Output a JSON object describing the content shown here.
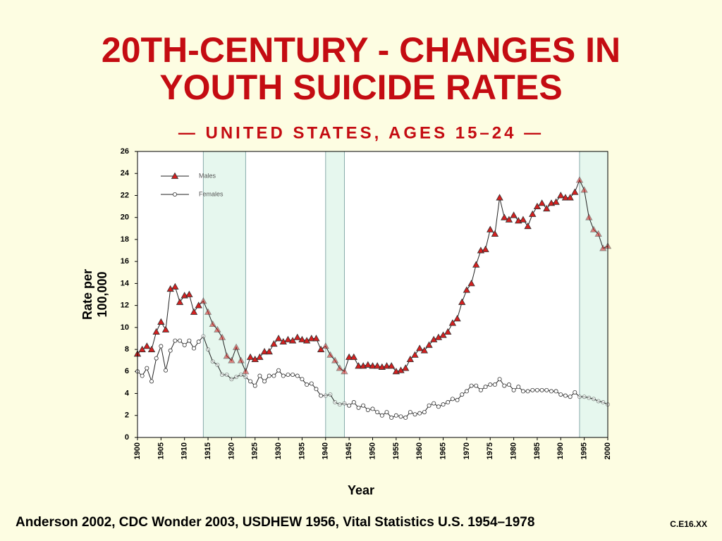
{
  "chart_data": {
    "type": "line",
    "title": [
      "20TH-CENTURY - CHANGES IN",
      "YOUTH SUICIDE RATES"
    ],
    "subtitle": "— UNITED STATES, AGES 15–24 —",
    "x_label": "Year",
    "y_label": [
      "Rate per",
      "100,000"
    ],
    "source": "Anderson 2002, CDC Wonder 2003, USDHEW 1956, Vital Statistics U.S. 1954–1978",
    "code": "C.E16.XX",
    "x": [
      1900,
      1901,
      1902,
      1903,
      1904,
      1905,
      1906,
      1907,
      1908,
      1909,
      1910,
      1911,
      1912,
      1913,
      1914,
      1915,
      1916,
      1917,
      1918,
      1919,
      1920,
      1921,
      1922,
      1923,
      1924,
      1925,
      1926,
      1927,
      1928,
      1929,
      1930,
      1931,
      1932,
      1933,
      1934,
      1935,
      1936,
      1937,
      1938,
      1939,
      1940,
      1941,
      1942,
      1943,
      1944,
      1945,
      1946,
      1947,
      1948,
      1949,
      1950,
      1951,
      1952,
      1953,
      1954,
      1955,
      1956,
      1957,
      1958,
      1959,
      1960,
      1961,
      1962,
      1963,
      1964,
      1965,
      1966,
      1967,
      1968,
      1969,
      1970,
      1971,
      1972,
      1973,
      1974,
      1975,
      1976,
      1977,
      1978,
      1979,
      1980,
      1981,
      1982,
      1983,
      1984,
      1985,
      1986,
      1987,
      1988,
      1989,
      1990,
      1991,
      1992,
      1993,
      1994,
      1995,
      1996,
      1997,
      1998,
      1999,
      2000
    ],
    "series": [
      {
        "name": "Males",
        "color": "#d42020",
        "marker": "triangle",
        "values": [
          7.6,
          8.0,
          8.3,
          8.0,
          9.6,
          10.5,
          9.8,
          13.5,
          13.7,
          12.3,
          12.9,
          13.0,
          11.4,
          12.0,
          12.4,
          11.4,
          10.3,
          9.8,
          9.1,
          7.4,
          7.0,
          8.2,
          7.0,
          6.0,
          7.3,
          7.1,
          7.3,
          7.8,
          7.8,
          8.5,
          9.0,
          8.7,
          8.9,
          8.8,
          9.1,
          8.9,
          8.8,
          9.0,
          9.0,
          8.0,
          8.3,
          7.5,
          7.0,
          6.3,
          6.0,
          7.3,
          7.3,
          6.5,
          6.5,
          6.6,
          6.5,
          6.5,
          6.4,
          6.5,
          6.5,
          6.0,
          6.1,
          6.3,
          7.1,
          7.5,
          8.1,
          7.9,
          8.4,
          8.9,
          9.1,
          9.3,
          9.6,
          10.4,
          10.8,
          12.3,
          13.4,
          14.0,
          15.7,
          17.0,
          17.1,
          18.9,
          18.5,
          21.8,
          20.0,
          19.8,
          20.2,
          19.7,
          19.8,
          19.2,
          20.3,
          21.0,
          21.3,
          20.8,
          21.3,
          21.4,
          22.0,
          21.8,
          21.8,
          22.3,
          23.4,
          22.5,
          20.0,
          18.9,
          18.5,
          17.2,
          17.4
        ]
      },
      {
        "name": "Females",
        "color": "#ffffff",
        "marker": "circle",
        "values": [
          6.0,
          5.6,
          6.3,
          5.1,
          7.2,
          8.3,
          6.1,
          7.9,
          8.8,
          8.8,
          8.4,
          8.8,
          8.1,
          8.7,
          9.2,
          8.0,
          6.9,
          6.6,
          5.7,
          5.7,
          5.3,
          5.5,
          5.7,
          5.5,
          5.1,
          4.7,
          5.6,
          5.1,
          5.6,
          5.6,
          6.1,
          5.6,
          5.7,
          5.7,
          5.6,
          5.3,
          4.8,
          4.9,
          4.4,
          3.8,
          3.8,
          3.9,
          3.2,
          3.0,
          3.1,
          2.9,
          3.2,
          2.7,
          2.9,
          2.5,
          2.6,
          2.3,
          2.0,
          2.3,
          1.8,
          2.0,
          1.9,
          1.8,
          2.3,
          2.1,
          2.2,
          2.3,
          2.9,
          3.1,
          2.8,
          3.0,
          3.2,
          3.5,
          3.4,
          3.9,
          4.2,
          4.7,
          4.7,
          4.3,
          4.6,
          4.8,
          4.8,
          5.3,
          4.7,
          4.8,
          4.3,
          4.6,
          4.2,
          4.2,
          4.3,
          4.3,
          4.3,
          4.3,
          4.2,
          4.2,
          3.9,
          3.8,
          3.7,
          4.1,
          3.7,
          3.7,
          3.6,
          3.5,
          3.3,
          3.2,
          3.0
        ]
      }
    ],
    "highlight_ranges": [
      [
        1914,
        1923
      ],
      [
        1940,
        1944
      ],
      [
        1994,
        2000
      ]
    ],
    "highlight_color": "#e6f7ee",
    "xlim": [
      1900,
      2000
    ],
    "xticks": [
      1900,
      1905,
      1910,
      1915,
      1920,
      1925,
      1930,
      1935,
      1940,
      1945,
      1950,
      1955,
      1960,
      1965,
      1970,
      1975,
      1980,
      1985,
      1990,
      1995,
      2000
    ],
    "ylim": [
      0,
      26
    ],
    "yticks": [
      0,
      2,
      4,
      6,
      8,
      10,
      12,
      14,
      16,
      18,
      20,
      22,
      24,
      26
    ],
    "legend": "top-left"
  }
}
